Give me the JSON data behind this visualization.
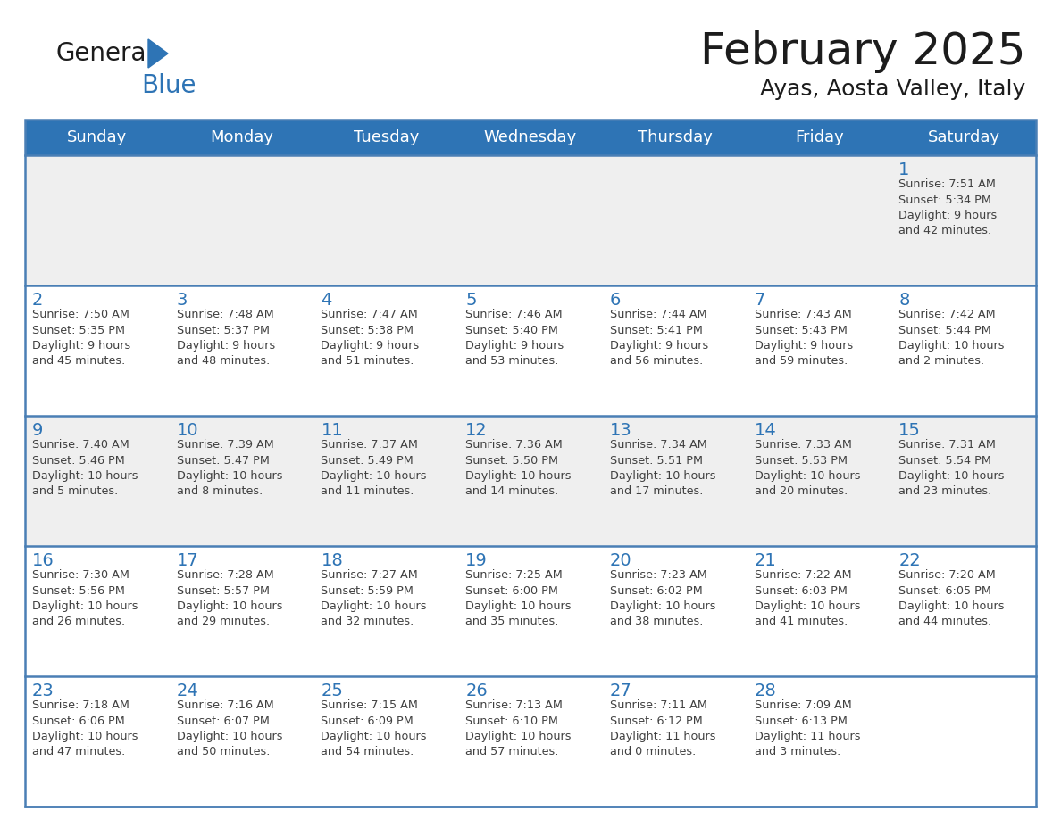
{
  "title": "February 2025",
  "subtitle": "Ayas, Aosta Valley, Italy",
  "days_of_week": [
    "Sunday",
    "Monday",
    "Tuesday",
    "Wednesday",
    "Thursday",
    "Friday",
    "Saturday"
  ],
  "header_bg": "#2E74B5",
  "header_text": "#FFFFFF",
  "row_bg_gray": "#EFEFEF",
  "row_bg_white": "#FFFFFF",
  "day_number_color": "#2E74B5",
  "info_text_color": "#404040",
  "row_bg_pattern": [
    "gray",
    "white",
    "gray",
    "white",
    "white"
  ],
  "calendar_data": [
    [
      null,
      null,
      null,
      null,
      null,
      null,
      {
        "day": 1,
        "sunrise": "7:51 AM",
        "sunset": "5:34 PM",
        "daylight": "9 hours and 42 minutes."
      }
    ],
    [
      {
        "day": 2,
        "sunrise": "7:50 AM",
        "sunset": "5:35 PM",
        "daylight": "9 hours and 45 minutes."
      },
      {
        "day": 3,
        "sunrise": "7:48 AM",
        "sunset": "5:37 PM",
        "daylight": "9 hours and 48 minutes."
      },
      {
        "day": 4,
        "sunrise": "7:47 AM",
        "sunset": "5:38 PM",
        "daylight": "9 hours and 51 minutes."
      },
      {
        "day": 5,
        "sunrise": "7:46 AM",
        "sunset": "5:40 PM",
        "daylight": "9 hours and 53 minutes."
      },
      {
        "day": 6,
        "sunrise": "7:44 AM",
        "sunset": "5:41 PM",
        "daylight": "9 hours and 56 minutes."
      },
      {
        "day": 7,
        "sunrise": "7:43 AM",
        "sunset": "5:43 PM",
        "daylight": "9 hours and 59 minutes."
      },
      {
        "day": 8,
        "sunrise": "7:42 AM",
        "sunset": "5:44 PM",
        "daylight": "10 hours and 2 minutes."
      }
    ],
    [
      {
        "day": 9,
        "sunrise": "7:40 AM",
        "sunset": "5:46 PM",
        "daylight": "10 hours and 5 minutes."
      },
      {
        "day": 10,
        "sunrise": "7:39 AM",
        "sunset": "5:47 PM",
        "daylight": "10 hours and 8 minutes."
      },
      {
        "day": 11,
        "sunrise": "7:37 AM",
        "sunset": "5:49 PM",
        "daylight": "10 hours and 11 minutes."
      },
      {
        "day": 12,
        "sunrise": "7:36 AM",
        "sunset": "5:50 PM",
        "daylight": "10 hours and 14 minutes."
      },
      {
        "day": 13,
        "sunrise": "7:34 AM",
        "sunset": "5:51 PM",
        "daylight": "10 hours and 17 minutes."
      },
      {
        "day": 14,
        "sunrise": "7:33 AM",
        "sunset": "5:53 PM",
        "daylight": "10 hours and 20 minutes."
      },
      {
        "day": 15,
        "sunrise": "7:31 AM",
        "sunset": "5:54 PM",
        "daylight": "10 hours and 23 minutes."
      }
    ],
    [
      {
        "day": 16,
        "sunrise": "7:30 AM",
        "sunset": "5:56 PM",
        "daylight": "10 hours and 26 minutes."
      },
      {
        "day": 17,
        "sunrise": "7:28 AM",
        "sunset": "5:57 PM",
        "daylight": "10 hours and 29 minutes."
      },
      {
        "day": 18,
        "sunrise": "7:27 AM",
        "sunset": "5:59 PM",
        "daylight": "10 hours and 32 minutes."
      },
      {
        "day": 19,
        "sunrise": "7:25 AM",
        "sunset": "6:00 PM",
        "daylight": "10 hours and 35 minutes."
      },
      {
        "day": 20,
        "sunrise": "7:23 AM",
        "sunset": "6:02 PM",
        "daylight": "10 hours and 38 minutes."
      },
      {
        "day": 21,
        "sunrise": "7:22 AM",
        "sunset": "6:03 PM",
        "daylight": "10 hours and 41 minutes."
      },
      {
        "day": 22,
        "sunrise": "7:20 AM",
        "sunset": "6:05 PM",
        "daylight": "10 hours and 44 minutes."
      }
    ],
    [
      {
        "day": 23,
        "sunrise": "7:18 AM",
        "sunset": "6:06 PM",
        "daylight": "10 hours and 47 minutes."
      },
      {
        "day": 24,
        "sunrise": "7:16 AM",
        "sunset": "6:07 PM",
        "daylight": "10 hours and 50 minutes."
      },
      {
        "day": 25,
        "sunrise": "7:15 AM",
        "sunset": "6:09 PM",
        "daylight": "10 hours and 54 minutes."
      },
      {
        "day": 26,
        "sunrise": "7:13 AM",
        "sunset": "6:10 PM",
        "daylight": "10 hours and 57 minutes."
      },
      {
        "day": 27,
        "sunrise": "7:11 AM",
        "sunset": "6:12 PM",
        "daylight": "11 hours and 0 minutes."
      },
      {
        "day": 28,
        "sunrise": "7:09 AM",
        "sunset": "6:13 PM",
        "daylight": "11 hours and 3 minutes."
      },
      null
    ]
  ]
}
